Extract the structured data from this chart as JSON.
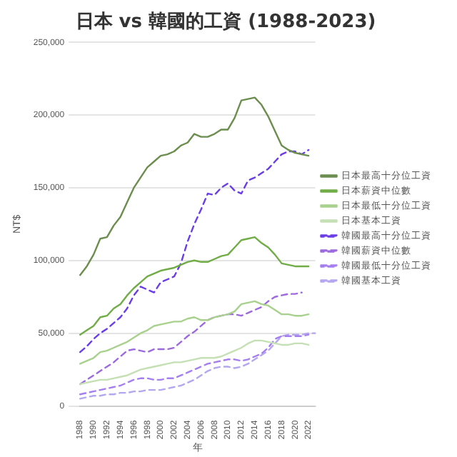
{
  "chart_data": {
    "type": "line",
    "title": "日本 vs 韓國的工資 (1988-2023)",
    "xlabel": "年",
    "ylabel": "NT$",
    "categories": [
      "1988",
      null,
      "1990",
      null,
      "1992",
      null,
      "1994",
      null,
      "1996",
      null,
      "1998",
      null,
      "2000",
      null,
      "2002",
      null,
      "2004",
      null,
      "2006",
      null,
      "2008",
      null,
      "2010",
      null,
      "2012",
      null,
      "2014",
      null,
      "2016",
      null,
      "2018",
      null,
      "2020",
      null,
      "2022",
      null
    ],
    "ylim": [
      0,
      250000
    ],
    "yticks": [
      {
        "value": 0,
        "label": "0"
      },
      {
        "value": 50000,
        "label": "50,000"
      },
      {
        "value": 100000,
        "label": "100,000"
      },
      {
        "value": 150000,
        "label": "150,000"
      },
      {
        "value": 200000,
        "label": "200,000"
      },
      {
        "value": 250000,
        "label": "250,000"
      }
    ],
    "grid": "y",
    "legend": "right",
    "marker": "none",
    "series": [
      {
        "name": "日本最高十分位工資",
        "color": "#6b8e4e",
        "line_style": "solid",
        "values": [
          90000,
          96000,
          104000,
          115000,
          116000,
          124000,
          130000,
          140000,
          150000,
          157000,
          164000,
          168000,
          172000,
          173000,
          175000,
          179000,
          181000,
          187000,
          185000,
          185000,
          187000,
          190000,
          190000,
          198000,
          210000,
          211000,
          212000,
          207000,
          199000,
          189000,
          179000,
          176000,
          174000,
          173000,
          172000,
          null
        ]
      },
      {
        "name": "日本薪資中位數",
        "color": "#70ad47",
        "line_style": "solid",
        "values": [
          49000,
          52000,
          55000,
          61000,
          62000,
          67000,
          70000,
          76000,
          81000,
          85000,
          89000,
          91000,
          93000,
          94000,
          95000,
          97000,
          99000,
          100000,
          99000,
          99000,
          101000,
          103000,
          104000,
          109000,
          114000,
          115000,
          116000,
          112000,
          109000,
          104000,
          98000,
          97000,
          96000,
          96000,
          96000,
          null
        ]
      },
      {
        "name": "日本最低十分位工資",
        "color": "#a9d18e",
        "line_style": "solid",
        "values": [
          29000,
          31000,
          33000,
          37000,
          38000,
          40000,
          42000,
          44000,
          47000,
          50000,
          52000,
          55000,
          56000,
          57000,
          58000,
          58000,
          60000,
          61000,
          59000,
          59000,
          61000,
          62000,
          63000,
          65000,
          70000,
          71000,
          72000,
          70000,
          69000,
          66000,
          63000,
          63000,
          62000,
          62000,
          63000,
          null
        ]
      },
      {
        "name": "日本基本工資",
        "color": "#c5e0b4",
        "line_style": "solid",
        "values": [
          15000,
          16000,
          17000,
          18000,
          18000,
          19000,
          20000,
          21000,
          23000,
          25000,
          26000,
          27000,
          28000,
          29000,
          30000,
          30000,
          31000,
          32000,
          33000,
          33000,
          33000,
          34000,
          36000,
          38000,
          40000,
          43000,
          45000,
          45000,
          44000,
          43000,
          42000,
          42000,
          43000,
          43000,
          42000,
          null
        ]
      },
      {
        "name": "韓國最高十分位工資",
        "color": "#6a3de8",
        "line_style": "dashed",
        "values": [
          37000,
          41000,
          46000,
          50000,
          53000,
          57000,
          61000,
          67000,
          76000,
          82000,
          80000,
          78000,
          85000,
          87000,
          89000,
          98000,
          113000,
          125000,
          135000,
          146000,
          145000,
          150000,
          153000,
          148000,
          146000,
          155000,
          157000,
          160000,
          163000,
          168000,
          173000,
          175000,
          175000,
          173000,
          176000,
          null
        ]
      },
      {
        "name": "韓國薪資中位數",
        "color": "#9c6ade",
        "line_style": "dashed",
        "values": [
          15000,
          18000,
          21000,
          24000,
          27000,
          30000,
          34000,
          38000,
          39000,
          38000,
          37000,
          39000,
          39000,
          39000,
          40000,
          44000,
          48000,
          51000,
          55000,
          59000,
          61000,
          62000,
          63000,
          63000,
          62000,
          64000,
          66000,
          68000,
          72000,
          75000,
          76000,
          77000,
          77000,
          78000,
          null,
          null
        ]
      },
      {
        "name": "韓國最低十分位工資",
        "color": "#a57ff0",
        "line_style": "dashed",
        "values": [
          8000,
          9000,
          10000,
          11000,
          12000,
          13000,
          14000,
          16000,
          18000,
          19000,
          19000,
          18000,
          18000,
          19000,
          19000,
          21000,
          23000,
          25000,
          27000,
          29000,
          30000,
          31000,
          32000,
          32000,
          31000,
          32000,
          34000,
          36000,
          40000,
          46000,
          48000,
          48000,
          48000,
          48000,
          49000,
          null
        ]
      },
      {
        "name": "韓國基本工資",
        "color": "#b4a7f0",
        "line_style": "dashed",
        "values": [
          5000,
          6000,
          7000,
          7000,
          8000,
          8000,
          9000,
          9000,
          10000,
          10000,
          11000,
          11000,
          11000,
          12000,
          13000,
          14000,
          16000,
          18000,
          21000,
          24000,
          26000,
          27000,
          27000,
          26000,
          27000,
          29000,
          32000,
          35000,
          38000,
          43000,
          48000,
          49000,
          49000,
          49000,
          50000,
          50000
        ]
      }
    ]
  }
}
